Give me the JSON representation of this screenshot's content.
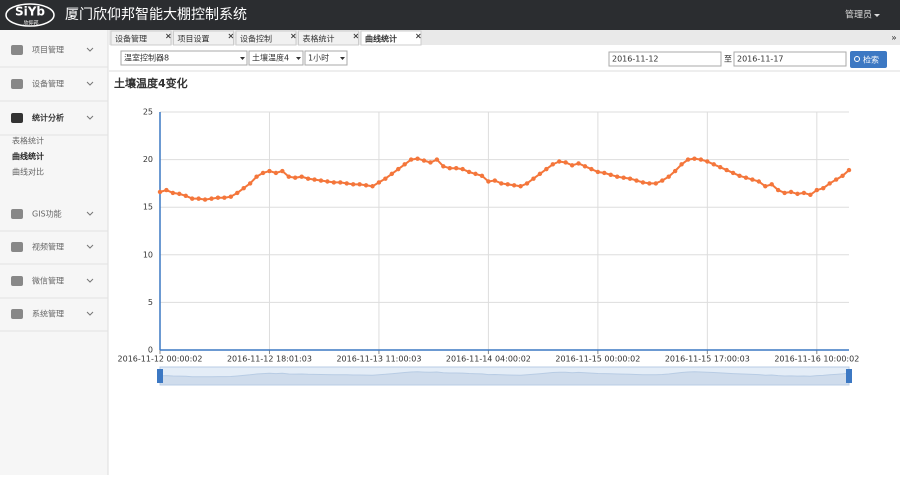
{
  "header": {
    "logo": "SiYb",
    "logo_sub": "欣仰邦",
    "title": "厦门欣仰邦智能大棚控制系统",
    "user": "管理员"
  },
  "sidebar": {
    "items": [
      {
        "label": "项目管理"
      },
      {
        "label": "设备管理"
      },
      {
        "label": "统计分析",
        "children": [
          "表格统计",
          "曲线统计",
          "曲线对比"
        ]
      },
      {
        "label": "GIS功能"
      },
      {
        "label": "视频管理"
      },
      {
        "label": "微信管理"
      },
      {
        "label": "系统管理"
      }
    ]
  },
  "tabs": [
    "设备管理",
    "项目设置",
    "设备控制",
    "表格统计",
    "曲线统计"
  ],
  "filters": {
    "controller": "温室控制器8",
    "sensor": "土壤温度4",
    "interval": "1小时",
    "date_from": "2016-11-12",
    "separator": "至",
    "date_to": "2016-11-17",
    "search": "检索"
  },
  "chart_data": {
    "type": "line",
    "title": "土壤温度4变化",
    "color": "#f4763b",
    "grid": true,
    "ylim": [
      0,
      25
    ],
    "yticks": [
      0,
      5,
      10,
      15,
      20,
      25
    ],
    "categories": [
      "2016-11-12 00:00:02",
      null,
      null,
      null,
      null,
      null,
      null,
      null,
      null,
      null,
      null,
      null,
      null,
      null,
      null,
      null,
      null,
      "2016-11-12 18:01:03",
      null,
      null,
      null,
      null,
      null,
      null,
      null,
      null,
      null,
      null,
      null,
      null,
      null,
      null,
      null,
      null,
      "2016-11-13 11:00:03",
      null,
      null,
      null,
      null,
      null,
      null,
      null,
      null,
      null,
      null,
      null,
      null,
      null,
      null,
      null,
      null,
      "2016-11-14 04:00:02",
      null,
      null,
      null,
      null,
      null,
      null,
      null,
      null,
      null,
      null,
      null,
      null,
      null,
      null,
      null,
      null,
      "2016-11-15 00:00:02",
      null,
      null,
      null,
      null,
      null,
      null,
      null,
      null,
      null,
      null,
      null,
      null,
      null,
      null,
      null,
      null,
      "2016-11-15 17:00:03",
      null,
      null,
      null,
      null,
      null,
      null,
      null,
      null,
      null,
      null,
      null,
      null,
      null,
      null,
      null,
      null,
      "2016-11-16 10:00:02",
      null,
      null,
      null,
      null,
      null
    ],
    "values": [
      16.6,
      16.8,
      16.5,
      16.4,
      16.2,
      15.9,
      15.9,
      15.8,
      15.9,
      16.0,
      16.0,
      16.1,
      16.5,
      17.0,
      17.5,
      18.2,
      18.6,
      18.8,
      18.6,
      18.8,
      18.2,
      18.1,
      18.2,
      18.0,
      17.9,
      17.8,
      17.7,
      17.6,
      17.6,
      17.5,
      17.4,
      17.4,
      17.3,
      17.2,
      17.6,
      18.0,
      18.5,
      19.0,
      19.5,
      20.0,
      20.1,
      19.9,
      19.7,
      20.0,
      19.3,
      19.1,
      19.1,
      19.0,
      18.7,
      18.5,
      18.3,
      17.7,
      17.8,
      17.5,
      17.4,
      17.3,
      17.2,
      17.5,
      18.0,
      18.5,
      19.0,
      19.5,
      19.8,
      19.7,
      19.4,
      19.6,
      19.3,
      19.0,
      18.7,
      18.6,
      18.4,
      18.2,
      18.1,
      18.0,
      17.8,
      17.6,
      17.5,
      17.5,
      17.8,
      18.2,
      18.8,
      19.5,
      20.0,
      20.1,
      20.0,
      19.8,
      19.5,
      19.2,
      18.9,
      18.6,
      18.3,
      18.1,
      17.9,
      17.7,
      17.2,
      17.4,
      16.8,
      16.5,
      16.6,
      16.4,
      16.5,
      16.3,
      16.8,
      17.0,
      17.5,
      17.9,
      18.3,
      18.9
    ]
  }
}
